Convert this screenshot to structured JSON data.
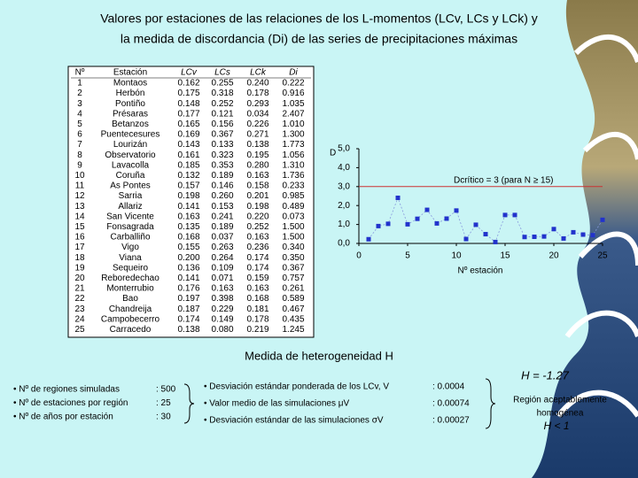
{
  "title": [
    "Valores por estaciones de las relaciones de los L-momentos (LCv, LCs y LCk) y",
    "la medida de discordancia (Di) de las series de precipitaciones máximas"
  ],
  "table": {
    "header": [
      "Nº",
      "Estación",
      "LCv",
      "LCs",
      "LCk",
      "Di"
    ],
    "rows": [
      [
        "1",
        "Montaos",
        "0.162",
        "0.255",
        "0.240",
        "0.222"
      ],
      [
        "2",
        "Herbón",
        "0.175",
        "0.318",
        "0.178",
        "0.916"
      ],
      [
        "3",
        "Pontiño",
        "0.148",
        "0.252",
        "0.293",
        "1.035"
      ],
      [
        "4",
        "Présaras",
        "0.177",
        "0.121",
        "0.034",
        "2.407"
      ],
      [
        "5",
        "Betanzos",
        "0.165",
        "0.156",
        "0.226",
        "1.010"
      ],
      [
        "6",
        "Puentecesures",
        "0.169",
        "0.367",
        "0.271",
        "1.300"
      ],
      [
        "7",
        "Lourizán",
        "0.143",
        "0.133",
        "0.138",
        "1.773"
      ],
      [
        "8",
        "Observatorio",
        "0.161",
        "0.323",
        "0.195",
        "1.056"
      ],
      [
        "9",
        "Lavacolla",
        "0.185",
        "0.353",
        "0.280",
        "1.310"
      ],
      [
        "10",
        "Coruña",
        "0.132",
        "0.189",
        "0.163",
        "1.736"
      ],
      [
        "11",
        "As Pontes",
        "0.157",
        "0.146",
        "0.158",
        "0.233"
      ],
      [
        "12",
        "Sarria",
        "0.198",
        "0.260",
        "0.201",
        "0.985"
      ],
      [
        "13",
        "Allariz",
        "0.141",
        "0.153",
        "0.198",
        "0.489"
      ],
      [
        "14",
        "San Vicente",
        "0.163",
        "0.241",
        "0.220",
        "0.073"
      ],
      [
        "15",
        "Fonsagrada",
        "0.135",
        "0.189",
        "0.252",
        "1.500"
      ],
      [
        "16",
        "Carballiño",
        "0.168",
        "0.037",
        "0.163",
        "1.500"
      ],
      [
        "17",
        "Vigo",
        "0.155",
        "0.263",
        "0.236",
        "0.340"
      ],
      [
        "18",
        "Viana",
        "0.200",
        "0.264",
        "0.174",
        "0.350"
      ],
      [
        "19",
        "Sequeiro",
        "0.136",
        "0.109",
        "0.174",
        "0.367"
      ],
      [
        "20",
        "Reboredechao",
        "0.141",
        "0.071",
        "0.159",
        "0.757"
      ],
      [
        "21",
        "Monterrubio",
        "0.176",
        "0.163",
        "0.163",
        "0.261"
      ],
      [
        "22",
        "Bao",
        "0.197",
        "0.398",
        "0.168",
        "0.589"
      ],
      [
        "23",
        "Chandreija",
        "0.187",
        "0.229",
        "0.181",
        "0.467"
      ],
      [
        "24",
        "Campobecerro",
        "0.174",
        "0.149",
        "0.178",
        "0.435"
      ],
      [
        "25",
        "Carracedo",
        "0.138",
        "0.080",
        "0.219",
        "1.245"
      ]
    ]
  },
  "chart_data": {
    "type": "scatter",
    "x": [
      1,
      2,
      3,
      4,
      5,
      6,
      7,
      8,
      9,
      10,
      11,
      12,
      13,
      14,
      15,
      16,
      17,
      18,
      19,
      20,
      21,
      22,
      23,
      24,
      25
    ],
    "values": [
      0.222,
      0.916,
      1.035,
      2.407,
      1.01,
      1.3,
      1.773,
      1.056,
      1.31,
      1.736,
      0.233,
      0.985,
      0.489,
      0.073,
      1.5,
      1.5,
      0.34,
      0.35,
      0.367,
      0.757,
      0.261,
      0.589,
      0.467,
      0.435,
      1.245
    ],
    "color": "#2233cc",
    "xlim": [
      0,
      25
    ],
    "xticks": [
      0,
      5,
      10,
      15,
      20,
      25
    ],
    "ylim": [
      0,
      5
    ],
    "yticks": [
      {
        "value": 0,
        "label": "0,0"
      },
      {
        "value": 1,
        "label": "1,0"
      },
      {
        "value": 2,
        "label": "2,0"
      },
      {
        "value": 3,
        "label": "3,0"
      },
      {
        "value": 4,
        "label": "4,0"
      },
      {
        "value": 5,
        "label": "5,0"
      }
    ],
    "ylabel": "D",
    "xlabel": "Nº estación",
    "threshold": {
      "value": 3,
      "label": "Dcrítico = 3 (para N ≥ 15)",
      "color": "#cc3333"
    }
  },
  "heterogeneity": {
    "title": "Medida de heterogeneidad H",
    "simulation": [
      {
        "label": "• Nº de regiones simuladas",
        "value": ": 500"
      },
      {
        "label": "• Nº de estaciones por región",
        "value": ": 25"
      },
      {
        "label": "• Nº de años por estación",
        "value": ": 30"
      }
    ],
    "statistics": [
      {
        "label": "• Desviación estándar ponderada de los LCv, V",
        "value": ": 0.0004"
      },
      {
        "label": "• Valor medio de las simulaciones μV",
        "value": ": 0.00074"
      },
      {
        "label": "• Desviación estándar de las simulaciones σV",
        "value": ": 0.00027"
      }
    ],
    "result": {
      "H": "H = -1.27",
      "verdict": [
        "Región aceptablemente",
        "homogénea"
      ],
      "condition": "H < 1"
    }
  }
}
